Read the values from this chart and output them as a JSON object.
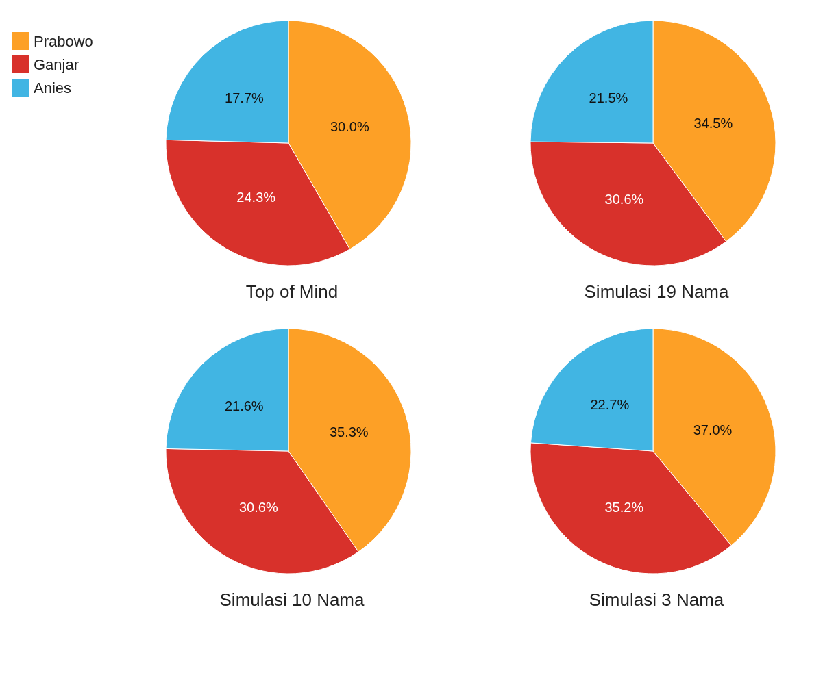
{
  "chart_data": [
    {
      "type": "pie",
      "title": "Top of Mind",
      "categories": [
        "Prabowo",
        "Ganjar",
        "Anies"
      ],
      "values": [
        30.0,
        24.3,
        17.7
      ],
      "value_labels": [
        "30.0%",
        "24.3%",
        "17.7%"
      ],
      "colors": [
        "#fda026",
        "#d8312b",
        "#41b5e3"
      ],
      "legend": "top left"
    },
    {
      "type": "pie",
      "title": "Simulasi 19 Nama",
      "categories": [
        null,
        null,
        null
      ],
      "values": [
        34.5,
        30.6,
        21.5
      ],
      "value_labels": [
        "34.5%",
        "30.6%",
        "21.5%"
      ],
      "colors": [
        "#fda026",
        "#d8312b",
        "#41b5e3"
      ]
    },
    {
      "type": "pie",
      "title": "Simulasi 10 Nama",
      "categories": [
        null,
        null,
        null
      ],
      "values": [
        35.3,
        30.6,
        21.6
      ],
      "value_labels": [
        "35.3%",
        "30.6%",
        "21.6%"
      ],
      "colors": [
        "#fda026",
        "#d8312b",
        "#41b5e3"
      ]
    },
    {
      "type": "pie",
      "title": "Simulasi 3 Nama",
      "categories": [
        null,
        null,
        null
      ],
      "values": [
        37.0,
        35.2,
        22.7
      ],
      "value_labels": [
        "37.0%",
        "35.2%",
        "22.7%"
      ],
      "colors": [
        "#fda026",
        "#d8312b",
        "#41b5e3"
      ]
    }
  ]
}
